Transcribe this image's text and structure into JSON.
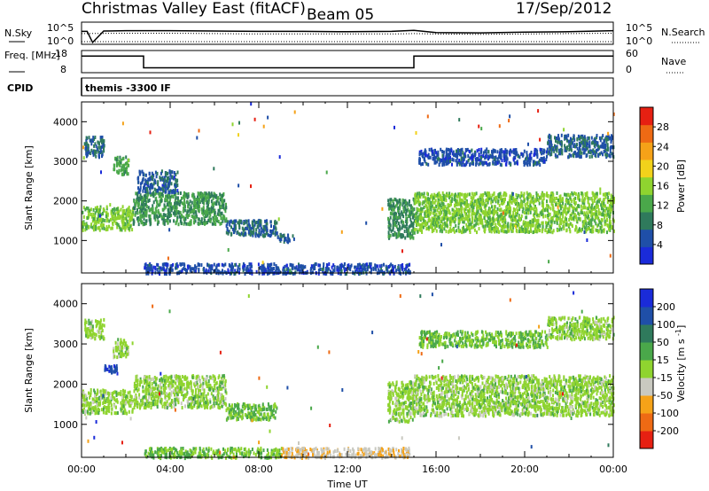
{
  "header": {
    "title": "Christmas Valley East (fitACF)",
    "beam": "Beam 05",
    "date": "17/Sep/2012"
  },
  "chart_data": [
    {
      "type": "line",
      "panel": "noise",
      "left_label": "N.Sky",
      "right_label": "N.Search",
      "left_ticks": [
        "10^5",
        "10^0"
      ],
      "right_ticks": [
        "10^5",
        "10^0"
      ],
      "series": [
        {
          "name": "N.Sky",
          "style": "solid",
          "x": [
            0,
            0.25,
            0.5,
            1,
            2,
            3,
            4,
            6,
            8,
            10,
            12,
            14,
            15,
            16,
            18,
            20,
            22,
            24
          ],
          "y": [
            3.0,
            3.0,
            0.0,
            3.1,
            3.2,
            3.2,
            3.2,
            3.1,
            3.0,
            3.0,
            2.9,
            3.0,
            3.3,
            2.7,
            2.6,
            2.8,
            2.9,
            3.2
          ]
        },
        {
          "name": "N.Search",
          "style": "dotted",
          "x": [
            0,
            2,
            4,
            6,
            8,
            10,
            12,
            14,
            15,
            16,
            18,
            20,
            22,
            24
          ],
          "y": [
            2.4,
            2.5,
            2.5,
            2.4,
            2.3,
            2.3,
            2.3,
            2.3,
            2.4,
            2.3,
            2.2,
            2.3,
            2.4,
            2.5
          ]
        }
      ]
    },
    {
      "type": "line",
      "panel": "frequency",
      "left_label": "Freq. [MHz]",
      "right_label": "Nave",
      "left_ticks": [
        "18",
        "8"
      ],
      "right_ticks": [
        "60",
        "0"
      ],
      "series": [
        {
          "name": "Freq",
          "style": "solid",
          "x": [
            0,
            2.8,
            2.8,
            15,
            15,
            24
          ],
          "y": [
            15.5,
            15.5,
            10.2,
            10.2,
            15.5,
            15.5
          ]
        },
        {
          "name": "Nave",
          "style": "dotted",
          "x": [
            0,
            24
          ],
          "y": [
            22,
            22
          ]
        }
      ]
    },
    {
      "type": "label",
      "panel": "cpid",
      "label": "CPID",
      "text": "themis -3300 IF"
    },
    {
      "type": "heatmap",
      "panel": "power",
      "ylabel": "Slant Range [km]",
      "xlim": [
        0,
        24
      ],
      "ylim": [
        180,
        4500
      ],
      "yticks": [
        1000,
        2000,
        3000,
        4000
      ],
      "colorbar": {
        "label": "Power [dB]",
        "range": [
          0,
          32
        ],
        "ticks": [
          4,
          8,
          12,
          16,
          20,
          24,
          28
        ],
        "colors": [
          "#1a2bd9",
          "#1f4fa8",
          "#2f7a5c",
          "#4aa84a",
          "#8fd42f",
          "#f2d21b",
          "#f5a218",
          "#ee6a14",
          "#e62012"
        ]
      },
      "bands": [
        {
          "t0": 0,
          "t1": 2.3,
          "r0": 1300,
          "r1": 1900,
          "v": 15
        },
        {
          "t0": 2.3,
          "t1": 6.5,
          "r0": 1450,
          "r1": 2250,
          "v": 11
        },
        {
          "t0": 6.5,
          "t1": 8.8,
          "r0": 1150,
          "r1": 1550,
          "v": 7
        },
        {
          "t0": 8.8,
          "t1": 9.6,
          "r0": 1000,
          "r1": 1200,
          "v": 6
        },
        {
          "t0": 0.1,
          "t1": 1.0,
          "r0": 3150,
          "r1": 3650,
          "v": 7
        },
        {
          "t0": 1.4,
          "t1": 2.1,
          "r0": 2700,
          "r1": 3150,
          "v": 12
        },
        {
          "t0": 2.5,
          "t1": 4.3,
          "r0": 2250,
          "r1": 2800,
          "v": 6
        },
        {
          "t0": 13.8,
          "t1": 15.0,
          "r0": 1100,
          "r1": 2100,
          "v": 10
        },
        {
          "t0": 15.0,
          "t1": 24.0,
          "r0": 1250,
          "r1": 2250,
          "v": 15
        },
        {
          "t0": 15.2,
          "t1": 21.0,
          "r0": 2950,
          "r1": 3350,
          "v": 5
        },
        {
          "t0": 21.0,
          "t1": 24.0,
          "r0": 3150,
          "r1": 3700,
          "v": 7
        },
        {
          "t0": 2.8,
          "t1": 14.8,
          "r0": 200,
          "r1": 450,
          "v": 5
        }
      ]
    },
    {
      "type": "heatmap",
      "panel": "velocity",
      "ylabel": "Slant Range [km]",
      "xlabel": "Time UT",
      "xlim": [
        0,
        24
      ],
      "ylim": [
        180,
        4500
      ],
      "yticks": [
        1000,
        2000,
        3000,
        4000
      ],
      "xticks": [
        "00:00",
        "04:00",
        "08:00",
        "12:00",
        "16:00",
        "20:00",
        "00:00"
      ],
      "colorbar": {
        "label": "Velocity [m s^-1]",
        "range": [
          -250,
          250
        ],
        "ticks": [
          200,
          100,
          50,
          15,
          -15,
          -50,
          -100,
          -200
        ],
        "colors": [
          "#e62012",
          "#ee6a14",
          "#f5a218",
          "#c9c9c0",
          "#8fd42f",
          "#4aa84a",
          "#2f7a5c",
          "#1f4fa8",
          "#1a2bd9"
        ]
      },
      "bands": [
        {
          "t0": 0,
          "t1": 2.3,
          "r0": 1300,
          "r1": 1900,
          "v": 0
        },
        {
          "t0": 2.3,
          "t1": 6.5,
          "r0": 1450,
          "r1": 2250,
          "v": 0
        },
        {
          "t0": 6.5,
          "t1": 8.8,
          "r0": 1150,
          "r1": 1550,
          "v": 40
        },
        {
          "t0": 0.1,
          "t1": 1.0,
          "r0": 3150,
          "r1": 3650,
          "v": 0
        },
        {
          "t0": 1.0,
          "t1": 1.6,
          "r0": 2300,
          "r1": 2500,
          "v": 180
        },
        {
          "t0": 1.4,
          "t1": 2.1,
          "r0": 2700,
          "r1": 3150,
          "v": 0
        },
        {
          "t0": 13.8,
          "t1": 15.0,
          "r0": 1100,
          "r1": 2100,
          "v": 0
        },
        {
          "t0": 15.0,
          "t1": 24.0,
          "r0": 1250,
          "r1": 2250,
          "v": 0
        },
        {
          "t0": 15.2,
          "t1": 21.0,
          "r0": 2950,
          "r1": 3350,
          "v": 30
        },
        {
          "t0": 21.0,
          "t1": 24.0,
          "r0": 3150,
          "r1": 3700,
          "v": 0
        },
        {
          "t0": 2.8,
          "t1": 9.0,
          "r0": 200,
          "r1": 450,
          "v": 30
        },
        {
          "t0": 9.0,
          "t1": 14.8,
          "r0": 200,
          "r1": 450,
          "v": -70
        }
      ]
    }
  ]
}
